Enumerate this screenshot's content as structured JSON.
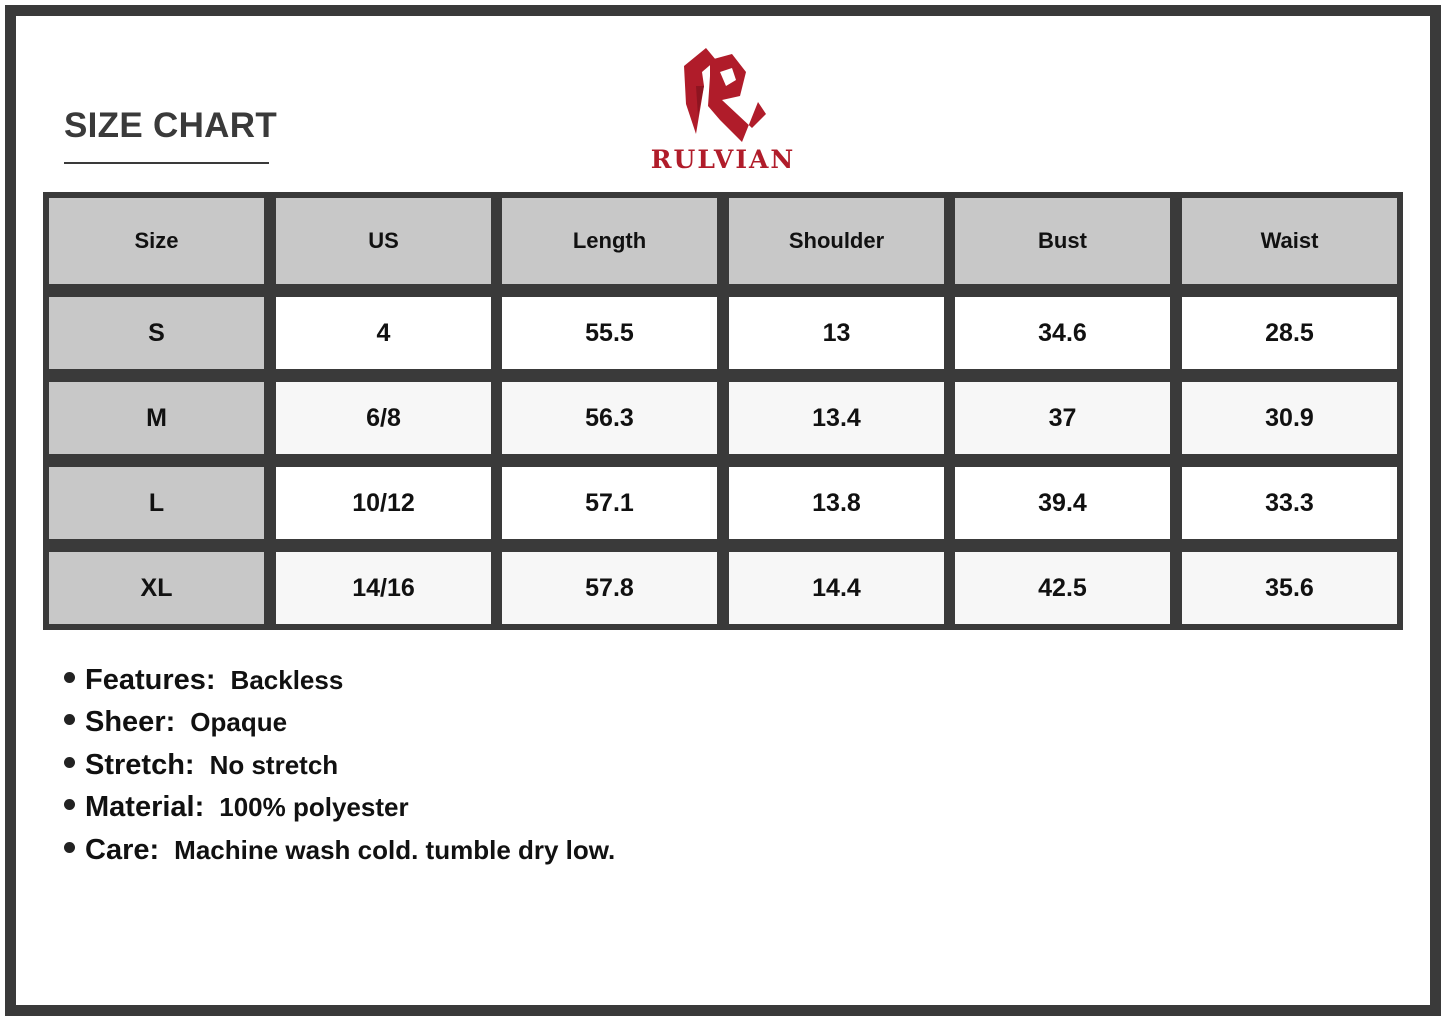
{
  "title": "SIZE CHART",
  "brand": {
    "name": "RULVIAN",
    "color": "#b01c2a",
    "logo_icon": "rulvian-r-logo"
  },
  "table": {
    "headers": [
      "Size",
      "US",
      "Length",
      "Shoulder",
      "Bust",
      "Waist"
    ],
    "rows": [
      [
        "S",
        "4",
        "55.5",
        "13",
        "34.6",
        "28.5"
      ],
      [
        "M",
        "6/8",
        "56.3",
        "13.4",
        "37",
        "30.9"
      ],
      [
        "L",
        "10/12",
        "57.1",
        "13.8",
        "39.4",
        "33.3"
      ],
      [
        "XL",
        "14/16",
        "57.8",
        "14.4",
        "42.5",
        "35.6"
      ]
    ]
  },
  "features": [
    {
      "label": "Features:",
      "value": "Backless"
    },
    {
      "label": "Sheer:",
      "value": "Opaque"
    },
    {
      "label": "Stretch:",
      "value": "No stretch"
    },
    {
      "label": "Material:",
      "value": "100% polyester"
    },
    {
      "label": "Care:",
      "value": "Machine wash cold. tumble dry low."
    }
  ]
}
